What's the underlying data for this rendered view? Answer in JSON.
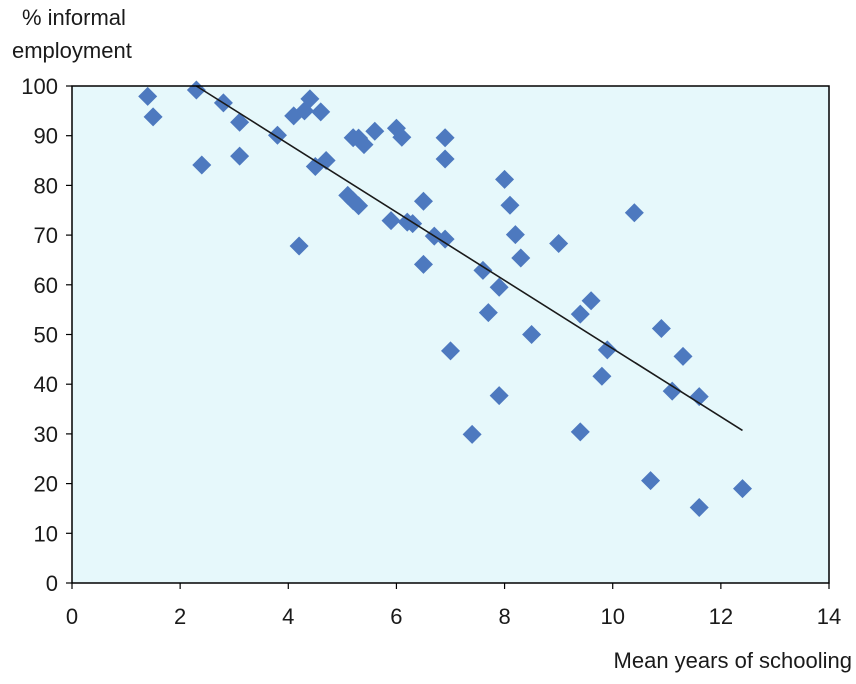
{
  "chart_data": {
    "type": "scatter",
    "ylabel_lines": [
      "% informal",
      "employment"
    ],
    "xlabel": "Mean years of schooling",
    "xlim": [
      0,
      14
    ],
    "ylim": [
      0,
      100
    ],
    "xticks": [
      0,
      2,
      4,
      6,
      8,
      10,
      12,
      14
    ],
    "yticks": [
      0,
      10,
      20,
      30,
      40,
      50,
      60,
      70,
      80,
      90,
      100
    ],
    "grid": false,
    "colors": {
      "plot_background": "#e6f8fb",
      "marker": "#4d79bf",
      "trend_line": "#1a1a1a",
      "frame": "#000000"
    },
    "points": [
      {
        "x": 1.4,
        "y": 97.9
      },
      {
        "x": 1.5,
        "y": 93.8
      },
      {
        "x": 2.3,
        "y": 99.2
      },
      {
        "x": 2.4,
        "y": 84.1
      },
      {
        "x": 2.8,
        "y": 96.6
      },
      {
        "x": 3.1,
        "y": 92.7
      },
      {
        "x": 3.1,
        "y": 85.9
      },
      {
        "x": 3.8,
        "y": 90.1
      },
      {
        "x": 4.1,
        "y": 94.0
      },
      {
        "x": 4.2,
        "y": 67.8
      },
      {
        "x": 4.3,
        "y": 95.0
      },
      {
        "x": 4.4,
        "y": 97.4
      },
      {
        "x": 4.5,
        "y": 83.8
      },
      {
        "x": 4.6,
        "y": 94.8
      },
      {
        "x": 4.7,
        "y": 85.0
      },
      {
        "x": 5.1,
        "y": 78.0
      },
      {
        "x": 5.2,
        "y": 89.6
      },
      {
        "x": 5.2,
        "y": 76.9
      },
      {
        "x": 5.3,
        "y": 89.5
      },
      {
        "x": 5.3,
        "y": 75.9
      },
      {
        "x": 5.4,
        "y": 88.2
      },
      {
        "x": 5.6,
        "y": 90.9
      },
      {
        "x": 5.9,
        "y": 72.9
      },
      {
        "x": 6.0,
        "y": 91.5
      },
      {
        "x": 6.1,
        "y": 89.7
      },
      {
        "x": 6.2,
        "y": 72.6
      },
      {
        "x": 6.3,
        "y": 72.3
      },
      {
        "x": 6.5,
        "y": 76.8
      },
      {
        "x": 6.5,
        "y": 64.1
      },
      {
        "x": 6.7,
        "y": 69.8
      },
      {
        "x": 6.9,
        "y": 89.6
      },
      {
        "x": 6.9,
        "y": 85.3
      },
      {
        "x": 6.9,
        "y": 69.2
      },
      {
        "x": 7.0,
        "y": 46.7
      },
      {
        "x": 7.4,
        "y": 29.9
      },
      {
        "x": 7.6,
        "y": 62.9
      },
      {
        "x": 7.7,
        "y": 54.4
      },
      {
        "x": 7.9,
        "y": 59.5
      },
      {
        "x": 7.9,
        "y": 37.7
      },
      {
        "x": 8.0,
        "y": 81.2
      },
      {
        "x": 8.1,
        "y": 76.0
      },
      {
        "x": 8.2,
        "y": 70.1
      },
      {
        "x": 8.3,
        "y": 65.4
      },
      {
        "x": 8.5,
        "y": 50.0
      },
      {
        "x": 9.0,
        "y": 68.3
      },
      {
        "x": 9.4,
        "y": 54.1
      },
      {
        "x": 9.4,
        "y": 30.4
      },
      {
        "x": 9.6,
        "y": 56.8
      },
      {
        "x": 9.8,
        "y": 41.6
      },
      {
        "x": 9.9,
        "y": 46.9
      },
      {
        "x": 10.4,
        "y": 74.5
      },
      {
        "x": 10.7,
        "y": 20.6
      },
      {
        "x": 10.9,
        "y": 51.2
      },
      {
        "x": 11.1,
        "y": 38.6
      },
      {
        "x": 11.3,
        "y": 45.6
      },
      {
        "x": 11.6,
        "y": 37.5
      },
      {
        "x": 11.6,
        "y": 15.2
      },
      {
        "x": 12.4,
        "y": 19.0
      }
    ],
    "trend_line": {
      "x": [
        2.3,
        12.4
      ],
      "y": [
        100.0,
        30.7
      ]
    }
  }
}
